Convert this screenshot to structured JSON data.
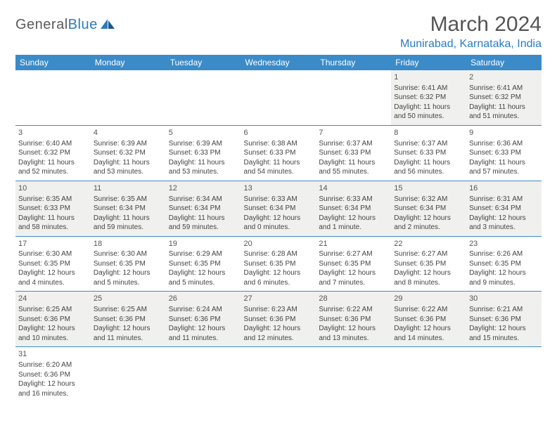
{
  "logo": {
    "text_general": "General",
    "text_blue": "Blue"
  },
  "title": "March 2024",
  "location": "Munirabad, Karnataka, India",
  "colors": {
    "header_bg": "#3b8bc9",
    "header_fg": "#ffffff",
    "row_alt_bg": "#f0f0ef",
    "border": "#3b8bc9",
    "logo_blue": "#2b7bbf"
  },
  "day_headers": [
    "Sunday",
    "Monday",
    "Tuesday",
    "Wednesday",
    "Thursday",
    "Friday",
    "Saturday"
  ],
  "weeks": [
    [
      null,
      null,
      null,
      null,
      null,
      {
        "n": "1",
        "sunrise": "Sunrise: 6:41 AM",
        "sunset": "Sunset: 6:32 PM",
        "day1": "Daylight: 11 hours",
        "day2": "and 50 minutes."
      },
      {
        "n": "2",
        "sunrise": "Sunrise: 6:41 AM",
        "sunset": "Sunset: 6:32 PM",
        "day1": "Daylight: 11 hours",
        "day2": "and 51 minutes."
      }
    ],
    [
      {
        "n": "3",
        "sunrise": "Sunrise: 6:40 AM",
        "sunset": "Sunset: 6:32 PM",
        "day1": "Daylight: 11 hours",
        "day2": "and 52 minutes."
      },
      {
        "n": "4",
        "sunrise": "Sunrise: 6:39 AM",
        "sunset": "Sunset: 6:32 PM",
        "day1": "Daylight: 11 hours",
        "day2": "and 53 minutes."
      },
      {
        "n": "5",
        "sunrise": "Sunrise: 6:39 AM",
        "sunset": "Sunset: 6:33 PM",
        "day1": "Daylight: 11 hours",
        "day2": "and 53 minutes."
      },
      {
        "n": "6",
        "sunrise": "Sunrise: 6:38 AM",
        "sunset": "Sunset: 6:33 PM",
        "day1": "Daylight: 11 hours",
        "day2": "and 54 minutes."
      },
      {
        "n": "7",
        "sunrise": "Sunrise: 6:37 AM",
        "sunset": "Sunset: 6:33 PM",
        "day1": "Daylight: 11 hours",
        "day2": "and 55 minutes."
      },
      {
        "n": "8",
        "sunrise": "Sunrise: 6:37 AM",
        "sunset": "Sunset: 6:33 PM",
        "day1": "Daylight: 11 hours",
        "day2": "and 56 minutes."
      },
      {
        "n": "9",
        "sunrise": "Sunrise: 6:36 AM",
        "sunset": "Sunset: 6:33 PM",
        "day1": "Daylight: 11 hours",
        "day2": "and 57 minutes."
      }
    ],
    [
      {
        "n": "10",
        "sunrise": "Sunrise: 6:35 AM",
        "sunset": "Sunset: 6:33 PM",
        "day1": "Daylight: 11 hours",
        "day2": "and 58 minutes."
      },
      {
        "n": "11",
        "sunrise": "Sunrise: 6:35 AM",
        "sunset": "Sunset: 6:34 PM",
        "day1": "Daylight: 11 hours",
        "day2": "and 59 minutes."
      },
      {
        "n": "12",
        "sunrise": "Sunrise: 6:34 AM",
        "sunset": "Sunset: 6:34 PM",
        "day1": "Daylight: 11 hours",
        "day2": "and 59 minutes."
      },
      {
        "n": "13",
        "sunrise": "Sunrise: 6:33 AM",
        "sunset": "Sunset: 6:34 PM",
        "day1": "Daylight: 12 hours",
        "day2": "and 0 minutes."
      },
      {
        "n": "14",
        "sunrise": "Sunrise: 6:33 AM",
        "sunset": "Sunset: 6:34 PM",
        "day1": "Daylight: 12 hours",
        "day2": "and 1 minute."
      },
      {
        "n": "15",
        "sunrise": "Sunrise: 6:32 AM",
        "sunset": "Sunset: 6:34 PM",
        "day1": "Daylight: 12 hours",
        "day2": "and 2 minutes."
      },
      {
        "n": "16",
        "sunrise": "Sunrise: 6:31 AM",
        "sunset": "Sunset: 6:34 PM",
        "day1": "Daylight: 12 hours",
        "day2": "and 3 minutes."
      }
    ],
    [
      {
        "n": "17",
        "sunrise": "Sunrise: 6:30 AM",
        "sunset": "Sunset: 6:35 PM",
        "day1": "Daylight: 12 hours",
        "day2": "and 4 minutes."
      },
      {
        "n": "18",
        "sunrise": "Sunrise: 6:30 AM",
        "sunset": "Sunset: 6:35 PM",
        "day1": "Daylight: 12 hours",
        "day2": "and 5 minutes."
      },
      {
        "n": "19",
        "sunrise": "Sunrise: 6:29 AM",
        "sunset": "Sunset: 6:35 PM",
        "day1": "Daylight: 12 hours",
        "day2": "and 5 minutes."
      },
      {
        "n": "20",
        "sunrise": "Sunrise: 6:28 AM",
        "sunset": "Sunset: 6:35 PM",
        "day1": "Daylight: 12 hours",
        "day2": "and 6 minutes."
      },
      {
        "n": "21",
        "sunrise": "Sunrise: 6:27 AM",
        "sunset": "Sunset: 6:35 PM",
        "day1": "Daylight: 12 hours",
        "day2": "and 7 minutes."
      },
      {
        "n": "22",
        "sunrise": "Sunrise: 6:27 AM",
        "sunset": "Sunset: 6:35 PM",
        "day1": "Daylight: 12 hours",
        "day2": "and 8 minutes."
      },
      {
        "n": "23",
        "sunrise": "Sunrise: 6:26 AM",
        "sunset": "Sunset: 6:35 PM",
        "day1": "Daylight: 12 hours",
        "day2": "and 9 minutes."
      }
    ],
    [
      {
        "n": "24",
        "sunrise": "Sunrise: 6:25 AM",
        "sunset": "Sunset: 6:36 PM",
        "day1": "Daylight: 12 hours",
        "day2": "and 10 minutes."
      },
      {
        "n": "25",
        "sunrise": "Sunrise: 6:25 AM",
        "sunset": "Sunset: 6:36 PM",
        "day1": "Daylight: 12 hours",
        "day2": "and 11 minutes."
      },
      {
        "n": "26",
        "sunrise": "Sunrise: 6:24 AM",
        "sunset": "Sunset: 6:36 PM",
        "day1": "Daylight: 12 hours",
        "day2": "and 11 minutes."
      },
      {
        "n": "27",
        "sunrise": "Sunrise: 6:23 AM",
        "sunset": "Sunset: 6:36 PM",
        "day1": "Daylight: 12 hours",
        "day2": "and 12 minutes."
      },
      {
        "n": "28",
        "sunrise": "Sunrise: 6:22 AM",
        "sunset": "Sunset: 6:36 PM",
        "day1": "Daylight: 12 hours",
        "day2": "and 13 minutes."
      },
      {
        "n": "29",
        "sunrise": "Sunrise: 6:22 AM",
        "sunset": "Sunset: 6:36 PM",
        "day1": "Daylight: 12 hours",
        "day2": "and 14 minutes."
      },
      {
        "n": "30",
        "sunrise": "Sunrise: 6:21 AM",
        "sunset": "Sunset: 6:36 PM",
        "day1": "Daylight: 12 hours",
        "day2": "and 15 minutes."
      }
    ],
    [
      {
        "n": "31",
        "sunrise": "Sunrise: 6:20 AM",
        "sunset": "Sunset: 6:36 PM",
        "day1": "Daylight: 12 hours",
        "day2": "and 16 minutes."
      },
      null,
      null,
      null,
      null,
      null,
      null
    ]
  ]
}
